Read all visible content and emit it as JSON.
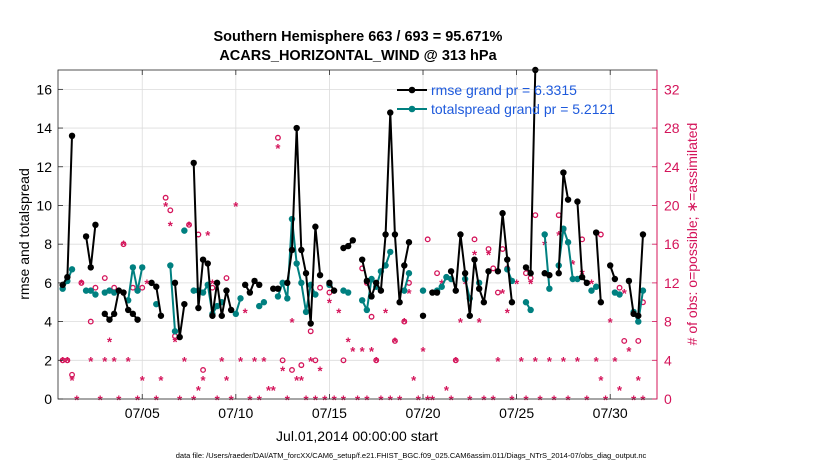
{
  "chart_data": {
    "type": "line",
    "title": [
      "Southern Hemisphere 663 / 693 = 95.671%",
      "ACARS_HORIZONTAL_WIND @ 313 hPa"
    ],
    "xlabel": "Jul.01,2014 00:00:00 start",
    "ylabel_left": "rmse and totalspread",
    "ylabel_right": "# of obs: o=possible; ∗=assimilated",
    "footer": "data file: /Users/raeder/DAI/ATM_forcXX/CAM6_setup/f.e21.FHIST_BGC.f09_025.CAM6assim.011/Diags_NTrS_2014-07/obs_diag_output.nc",
    "xlim": [
      0.5,
      32.5
    ],
    "ylim_left": [
      0,
      17
    ],
    "ylim_right": [
      0,
      34
    ],
    "x_ticks": [
      5,
      10,
      15,
      20,
      25,
      30
    ],
    "x_tick_labels": [
      "07/05",
      "07/10",
      "07/15",
      "07/20",
      "07/25",
      "07/30"
    ],
    "y_ticks_left": [
      0,
      2,
      4,
      6,
      8,
      10,
      12,
      14,
      16
    ],
    "y_ticks_right": [
      0,
      4,
      8,
      12,
      16,
      20,
      24,
      28,
      32
    ],
    "legend": [
      {
        "label": "rmse grand pr = 6.3315",
        "color": "#000000"
      },
      {
        "label": "totalspread grand pr = 5.2121",
        "color": "#008080"
      }
    ],
    "colors": {
      "rmse": "#000000",
      "spread": "#008080",
      "obs": "#d4145a",
      "legend_text": "#1e5adc"
    },
    "rmse": [
      [
        0.75,
        5.9
      ],
      [
        1.0,
        6.3
      ],
      [
        1.25,
        13.6
      ],
      [
        1.5,
        null
      ],
      [
        2.0,
        8.4
      ],
      [
        2.25,
        6.8
      ],
      [
        2.5,
        9.0
      ],
      [
        2.75,
        null
      ],
      [
        3.0,
        4.4
      ],
      [
        3.25,
        4.1
      ],
      [
        3.5,
        4.4
      ],
      [
        3.75,
        5.6
      ],
      [
        4.0,
        5.5
      ],
      [
        4.25,
        4.6
      ],
      [
        4.5,
        4.4
      ],
      [
        4.75,
        4.1
      ],
      [
        5.0,
        null
      ],
      [
        5.5,
        6.0
      ],
      [
        5.75,
        5.8
      ],
      [
        6.0,
        4.3
      ],
      [
        6.25,
        null
      ],
      [
        6.75,
        6.0
      ],
      [
        7.0,
        3.2
      ],
      [
        7.25,
        4.9
      ],
      [
        7.5,
        null
      ],
      [
        7.75,
        12.2
      ],
      [
        8.0,
        4.7
      ],
      [
        8.25,
        7.2
      ],
      [
        8.5,
        7.0
      ],
      [
        8.75,
        4.3
      ],
      [
        9.0,
        6.0
      ],
      [
        9.25,
        4.3
      ],
      [
        9.5,
        5.6
      ],
      [
        9.75,
        4.6
      ],
      [
        10.0,
        null
      ],
      [
        10.5,
        5.9
      ],
      [
        10.75,
        5.5
      ],
      [
        11.0,
        6.1
      ],
      [
        11.25,
        5.9
      ],
      [
        11.5,
        null
      ],
      [
        12.0,
        5.7
      ],
      [
        12.25,
        5.7
      ],
      [
        12.5,
        null
      ],
      [
        12.75,
        6.0
      ],
      [
        13.0,
        7.7
      ],
      [
        13.25,
        14.0
      ],
      [
        13.5,
        7.7
      ],
      [
        13.75,
        6.5
      ],
      [
        14.0,
        3.9
      ],
      [
        14.25,
        8.9
      ],
      [
        14.5,
        6.4
      ],
      [
        14.75,
        null
      ],
      [
        15.0,
        6.0
      ],
      [
        15.25,
        5.6
      ],
      [
        15.5,
        null
      ],
      [
        15.75,
        7.8
      ],
      [
        16.0,
        7.9
      ],
      [
        16.25,
        8.2
      ],
      [
        16.5,
        null
      ],
      [
        16.75,
        7.2
      ],
      [
        17.0,
        6.1
      ],
      [
        17.25,
        5.3
      ],
      [
        17.5,
        6.0
      ],
      [
        17.75,
        5.6
      ],
      [
        18.0,
        8.5
      ],
      [
        18.25,
        14.8
      ],
      [
        18.5,
        8.5
      ],
      [
        18.75,
        5.0
      ],
      [
        19.0,
        6.9
      ],
      [
        19.25,
        8.1
      ],
      [
        19.5,
        null
      ],
      [
        20.0,
        4.3
      ],
      [
        20.25,
        null
      ],
      [
        20.5,
        5.5
      ],
      [
        20.75,
        5.5
      ],
      [
        21.0,
        null
      ],
      [
        21.5,
        6.6
      ],
      [
        21.75,
        5.6
      ],
      [
        22.0,
        8.5
      ],
      [
        22.25,
        6.5
      ],
      [
        22.5,
        4.3
      ],
      [
        22.75,
        7.2
      ],
      [
        23.0,
        5.7
      ],
      [
        23.25,
        5.0
      ],
      [
        23.5,
        6.6
      ],
      [
        23.75,
        null
      ],
      [
        24.0,
        6.6
      ],
      [
        24.25,
        9.6
      ],
      [
        24.5,
        7.2
      ],
      [
        24.75,
        5.0
      ],
      [
        25.0,
        null
      ],
      [
        25.5,
        6.8
      ],
      [
        25.75,
        6.5
      ],
      [
        26.0,
        17.0
      ],
      [
        26.25,
        null
      ],
      [
        26.5,
        6.5
      ],
      [
        26.75,
        6.4
      ],
      [
        27.0,
        null
      ],
      [
        27.25,
        6.5
      ],
      [
        27.5,
        11.7
      ],
      [
        27.75,
        10.3
      ],
      [
        28.0,
        null
      ],
      [
        28.25,
        10.2
      ],
      [
        28.5,
        6.3
      ],
      [
        28.75,
        6.0
      ],
      [
        29.0,
        null
      ],
      [
        29.25,
        8.6
      ],
      [
        29.5,
        5.0
      ],
      [
        29.75,
        null
      ],
      [
        30.0,
        6.9
      ],
      [
        30.25,
        6.2
      ],
      [
        30.5,
        null
      ],
      [
        31.0,
        6.1
      ],
      [
        31.25,
        4.4
      ],
      [
        31.5,
        4.3
      ],
      [
        31.75,
        8.5
      ]
    ],
    "spread": [
      [
        0.75,
        5.7
      ],
      [
        1.0,
        6.1
      ],
      [
        1.25,
        6.7
      ],
      [
        1.5,
        null
      ],
      [
        2.0,
        5.6
      ],
      [
        2.25,
        5.6
      ],
      [
        2.5,
        5.4
      ],
      [
        2.75,
        null
      ],
      [
        3.0,
        5.5
      ],
      [
        3.25,
        5.6
      ],
      [
        3.5,
        5.5
      ],
      [
        3.75,
        null
      ],
      [
        4.25,
        5.1
      ],
      [
        4.5,
        6.8
      ],
      [
        4.75,
        5.6
      ],
      [
        5.0,
        6.8
      ],
      [
        5.25,
        null
      ],
      [
        5.75,
        4.9
      ],
      [
        6.0,
        null
      ],
      [
        6.5,
        6.9
      ],
      [
        6.75,
        3.5
      ],
      [
        7.0,
        null
      ],
      [
        7.25,
        8.7
      ],
      [
        7.5,
        null
      ],
      [
        7.75,
        5.6
      ],
      [
        8.0,
        5.6
      ],
      [
        8.25,
        5.5
      ],
      [
        8.5,
        5.9
      ],
      [
        8.75,
        4.4
      ],
      [
        9.0,
        4.8
      ],
      [
        9.25,
        5.0
      ],
      [
        9.5,
        null
      ],
      [
        10.0,
        4.4
      ],
      [
        10.25,
        5.2
      ],
      [
        10.5,
        null
      ],
      [
        11.25,
        4.8
      ],
      [
        11.5,
        5.0
      ],
      [
        11.75,
        null
      ],
      [
        12.25,
        5.3
      ],
      [
        12.5,
        6.0
      ],
      [
        12.75,
        5.2
      ],
      [
        13.0,
        9.3
      ],
      [
        13.25,
        7.0
      ],
      [
        13.5,
        6.0
      ],
      [
        13.75,
        4.5
      ],
      [
        14.0,
        5.9
      ],
      [
        14.25,
        5.4
      ],
      [
        14.5,
        null
      ],
      [
        15.0,
        5.9
      ],
      [
        15.25,
        null
      ],
      [
        15.75,
        5.6
      ],
      [
        16.0,
        5.5
      ],
      [
        16.25,
        null
      ],
      [
        16.75,
        5.1
      ],
      [
        17.0,
        4.6
      ],
      [
        17.25,
        6.2
      ],
      [
        17.5,
        5.8
      ],
      [
        17.75,
        6.6
      ],
      [
        18.0,
        6.9
      ],
      [
        18.25,
        7.6
      ],
      [
        18.5,
        null
      ],
      [
        19.0,
        5.6
      ],
      [
        19.25,
        6.5
      ],
      [
        19.5,
        null
      ],
      [
        20.0,
        5.6
      ],
      [
        20.25,
        null
      ],
      [
        20.75,
        5.6
      ],
      [
        21.0,
        5.8
      ],
      [
        21.25,
        6.3
      ],
      [
        21.5,
        6.2
      ],
      [
        21.75,
        null
      ],
      [
        22.25,
        6.2
      ],
      [
        22.5,
        5.2
      ],
      [
        22.75,
        null
      ],
      [
        23.0,
        6.0
      ],
      [
        23.25,
        null
      ],
      [
        24.5,
        6.7
      ],
      [
        24.75,
        6.1
      ],
      [
        25.0,
        null
      ],
      [
        25.5,
        5.0
      ],
      [
        25.75,
        4.6
      ],
      [
        26.0,
        null
      ],
      [
        26.5,
        8.5
      ],
      [
        26.75,
        5.7
      ],
      [
        27.0,
        null
      ],
      [
        27.25,
        6.9
      ],
      [
        27.5,
        8.8
      ],
      [
        27.75,
        8.1
      ],
      [
        28.0,
        6.2
      ],
      [
        28.25,
        6.2
      ],
      [
        28.5,
        null
      ],
      [
        29.0,
        5.6
      ],
      [
        29.25,
        5.8
      ],
      [
        29.5,
        null
      ],
      [
        30.25,
        5.5
      ],
      [
        30.5,
        5.4
      ],
      [
        30.75,
        null
      ],
      [
        31.25,
        4.5
      ],
      [
        31.5,
        4.0
      ],
      [
        31.75,
        5.6
      ]
    ],
    "obs_possible": [
      [
        0.75,
        4
      ],
      [
        1.0,
        4
      ],
      [
        1.25,
        2.5
      ],
      [
        1.75,
        12
      ],
      [
        2.25,
        8
      ],
      [
        2.5,
        11.5
      ],
      [
        3.0,
        12.5
      ],
      [
        3.5,
        11.5
      ],
      [
        4.0,
        16
      ],
      [
        4.5,
        11.5
      ],
      [
        5.0,
        11.5
      ],
      [
        6.25,
        20.8
      ],
      [
        6.5,
        19.5
      ],
      [
        6.75,
        6.5
      ],
      [
        7.5,
        18
      ],
      [
        8.0,
        17
      ],
      [
        8.5,
        14
      ],
      [
        8.75,
        11.5
      ],
      [
        8.25,
        3
      ],
      [
        9.5,
        12.5
      ],
      [
        12.25,
        27
      ],
      [
        12.5,
        4
      ],
      [
        13.0,
        3
      ],
      [
        13.5,
        3.5
      ],
      [
        13.75,
        13
      ],
      [
        14.0,
        7
      ],
      [
        14.25,
        4
      ],
      [
        14.5,
        11.5
      ],
      [
        15.0,
        11
      ],
      [
        15.75,
        4
      ],
      [
        16.75,
        13.5
      ],
      [
        17.0,
        12
      ],
      [
        17.25,
        8.5
      ],
      [
        17.5,
        4
      ],
      [
        18.5,
        6
      ],
      [
        19.0,
        8
      ],
      [
        19.25,
        12
      ],
      [
        20.25,
        16.5
      ],
      [
        20.75,
        13
      ],
      [
        21.75,
        4
      ],
      [
        22.75,
        16.5
      ],
      [
        23.5,
        15.5
      ],
      [
        23.75,
        13.5
      ],
      [
        24.0,
        11
      ],
      [
        24.25,
        15.5
      ],
      [
        24.5,
        13.5
      ],
      [
        25.5,
        13
      ],
      [
        25.75,
        12.5
      ],
      [
        26.0,
        19
      ],
      [
        26.5,
        17
      ],
      [
        27.25,
        19
      ],
      [
        27.5,
        17.5
      ],
      [
        28.5,
        16.5
      ],
      [
        29.5,
        17
      ],
      [
        30.5,
        11.5
      ],
      [
        30.75,
        6
      ],
      [
        31.5,
        6
      ],
      [
        31.75,
        10
      ]
    ],
    "obs_assim": [
      [
        0.75,
        4
      ],
      [
        1.0,
        4
      ],
      [
        1.25,
        2
      ],
      [
        1.5,
        0
      ],
      [
        1.75,
        12
      ],
      [
        2.25,
        4
      ],
      [
        2.75,
        0
      ],
      [
        3.0,
        4
      ],
      [
        3.25,
        6
      ],
      [
        3.5,
        4
      ],
      [
        3.75,
        0
      ],
      [
        4.0,
        16
      ],
      [
        4.25,
        4
      ],
      [
        4.75,
        0
      ],
      [
        5.0,
        2
      ],
      [
        5.25,
        12
      ],
      [
        5.75,
        0
      ],
      [
        6.0,
        2
      ],
      [
        6.25,
        20
      ],
      [
        6.5,
        18
      ],
      [
        6.75,
        6
      ],
      [
        7.0,
        0
      ],
      [
        7.25,
        4
      ],
      [
        7.5,
        18
      ],
      [
        7.75,
        0
      ],
      [
        8.0,
        1
      ],
      [
        8.25,
        2
      ],
      [
        8.5,
        17
      ],
      [
        8.75,
        12
      ],
      [
        9.0,
        0
      ],
      [
        9.25,
        4
      ],
      [
        9.5,
        2
      ],
      [
        9.75,
        0
      ],
      [
        10.0,
        20
      ],
      [
        10.25,
        4
      ],
      [
        10.5,
        9
      ],
      [
        10.75,
        0
      ],
      [
        11.0,
        4
      ],
      [
        11.25,
        0
      ],
      [
        11.5,
        4
      ],
      [
        11.75,
        1
      ],
      [
        12.0,
        1
      ],
      [
        12.25,
        26
      ],
      [
        12.5,
        3
      ],
      [
        12.75,
        0
      ],
      [
        13.0,
        8
      ],
      [
        13.25,
        2
      ],
      [
        13.5,
        2
      ],
      [
        13.75,
        0
      ],
      [
        14.0,
        4
      ],
      [
        14.25,
        0
      ],
      [
        14.5,
        3
      ],
      [
        14.75,
        0
      ],
      [
        15.0,
        10
      ],
      [
        15.25,
        0
      ],
      [
        15.5,
        9
      ],
      [
        15.75,
        0
      ],
      [
        16.0,
        6
      ],
      [
        16.25,
        5
      ],
      [
        16.5,
        0
      ],
      [
        16.75,
        5
      ],
      [
        17.0,
        0
      ],
      [
        17.25,
        5
      ],
      [
        17.5,
        4
      ],
      [
        17.75,
        0
      ],
      [
        18.0,
        9
      ],
      [
        18.25,
        0
      ],
      [
        18.5,
        6
      ],
      [
        18.75,
        0
      ],
      [
        19.0,
        8
      ],
      [
        19.25,
        11
      ],
      [
        19.5,
        2
      ],
      [
        19.75,
        0
      ],
      [
        20.0,
        5
      ],
      [
        20.25,
        0
      ],
      [
        20.5,
        0
      ],
      [
        21.0,
        12
      ],
      [
        21.25,
        1
      ],
      [
        21.5,
        0
      ],
      [
        21.75,
        4
      ],
      [
        22.0,
        8
      ],
      [
        22.25,
        12
      ],
      [
        22.5,
        0
      ],
      [
        22.75,
        15
      ],
      [
        23.0,
        8
      ],
      [
        23.25,
        0
      ],
      [
        23.5,
        15
      ],
      [
        23.75,
        0
      ],
      [
        24.0,
        4
      ],
      [
        24.25,
        11
      ],
      [
        24.5,
        9
      ],
      [
        24.75,
        0
      ],
      [
        25.0,
        12
      ],
      [
        25.25,
        4
      ],
      [
        25.5,
        0
      ],
      [
        25.75,
        12
      ],
      [
        26.0,
        4
      ],
      [
        26.25,
        0
      ],
      [
        26.5,
        16
      ],
      [
        26.75,
        4
      ],
      [
        27.0,
        0
      ],
      [
        27.25,
        17
      ],
      [
        27.5,
        4
      ],
      [
        27.75,
        0
      ],
      [
        28.0,
        14
      ],
      [
        28.25,
        4
      ],
      [
        28.5,
        13
      ],
      [
        28.75,
        0
      ],
      [
        29.0,
        12
      ],
      [
        29.25,
        4
      ],
      [
        29.5,
        2
      ],
      [
        29.75,
        0
      ],
      [
        30.0,
        8
      ],
      [
        30.25,
        4
      ],
      [
        30.5,
        1
      ],
      [
        30.75,
        11
      ],
      [
        31.0,
        5
      ],
      [
        31.25,
        0
      ],
      [
        31.5,
        2
      ],
      [
        31.75,
        0
      ]
    ]
  }
}
